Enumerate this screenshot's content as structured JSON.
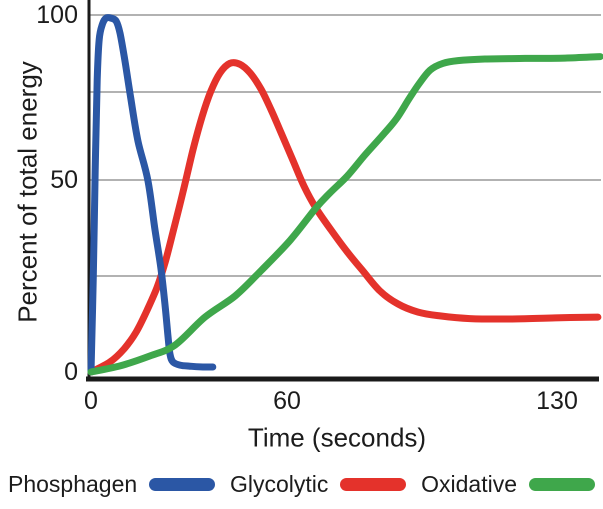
{
  "figure": {
    "background": "#ffffff",
    "text_color": "#1c1c1c",
    "axis_color": "#1a1a1a",
    "grid_color": "#b2b2b2"
  },
  "chart_data": {
    "type": "line",
    "title": "",
    "xlabel": "Time (seconds)",
    "ylabel": "Percent of total energy",
    "xlim": [
      0,
      141
    ],
    "ylim": [
      0,
      100
    ],
    "grid": true,
    "gridlines_at": [
      25,
      50,
      75,
      100
    ],
    "legend_position": "bottom",
    "x_ticks": [
      {
        "label": "0",
        "value": 0
      },
      {
        "label": "60",
        "value": 60
      },
      {
        "label": "130",
        "value": 130
      }
    ],
    "y_ticks": [
      {
        "label": "0",
        "value": 0
      },
      {
        "label": "50",
        "value": 50
      },
      {
        "label": "100",
        "value": 100
      }
    ],
    "series": [
      {
        "name": "Phosphagen",
        "color": "#2b57a5",
        "points": [
          [
            0,
            0
          ],
          [
            0.7,
            25
          ],
          [
            1.3,
            53
          ],
          [
            1.9,
            79
          ],
          [
            2.5,
            92
          ],
          [
            3.5,
            97
          ],
          [
            4.6,
            99
          ],
          [
            6.1,
            99
          ],
          [
            7.7,
            98
          ],
          [
            8.9,
            94
          ],
          [
            10.4,
            85
          ],
          [
            12.2,
            73
          ],
          [
            14.4,
            61
          ],
          [
            17.4,
            50
          ],
          [
            19.6,
            37
          ],
          [
            21.4,
            27
          ],
          [
            22.7,
            17
          ],
          [
            23.6,
            9
          ],
          [
            24.2,
            4.5
          ],
          [
            25.1,
            2.6
          ],
          [
            27.2,
            1.8
          ],
          [
            30.3,
            1.5
          ],
          [
            34.3,
            1.3
          ],
          [
            37.3,
            1.3
          ]
        ]
      },
      {
        "name": "Glycolytic",
        "color": "#e4322b",
        "points": [
          [
            0,
            0
          ],
          [
            5.8,
            2.6
          ],
          [
            10.1,
            6
          ],
          [
            13.8,
            10.4
          ],
          [
            17.1,
            16
          ],
          [
            20.2,
            22
          ],
          [
            22.7,
            28.6
          ],
          [
            25.4,
            37.5
          ],
          [
            28.2,
            47
          ],
          [
            31.2,
            58.5
          ],
          [
            34,
            68
          ],
          [
            36.7,
            75.3
          ],
          [
            39.5,
            81.2
          ],
          [
            42.5,
            84.3
          ],
          [
            45.6,
            84
          ],
          [
            48.7,
            81.2
          ],
          [
            52,
            76
          ],
          [
            55.1,
            70
          ],
          [
            58.2,
            63.4
          ],
          [
            61.6,
            55.4
          ],
          [
            64.4,
            48.4
          ],
          [
            67.5,
            42.7
          ],
          [
            71.4,
            37
          ],
          [
            75.6,
            31.3
          ],
          [
            79.7,
            26.3
          ],
          [
            84.1,
            21.1
          ],
          [
            88.8,
            17.7
          ],
          [
            94,
            15.6
          ],
          [
            99.7,
            14.6
          ],
          [
            107.4,
            13.9
          ],
          [
            117.8,
            13.8
          ],
          [
            129.5,
            14.1
          ],
          [
            140.6,
            14.3
          ]
        ]
      },
      {
        "name": "Oxidative",
        "color": "#3fa74b",
        "points": [
          [
            0,
            0
          ],
          [
            8.9,
            1.6
          ],
          [
            18.1,
            4.2
          ],
          [
            25.7,
            7
          ],
          [
            34.9,
            14.3
          ],
          [
            44.1,
            19.8
          ],
          [
            52.3,
            26.6
          ],
          [
            60.9,
            34.4
          ],
          [
            67.5,
            42.7
          ],
          [
            71.1,
            46.6
          ],
          [
            75.6,
            51.1
          ],
          [
            80.2,
            57.1
          ],
          [
            84.6,
            62.5
          ],
          [
            88.3,
            67.3
          ],
          [
            91.6,
            73
          ],
          [
            94.2,
            77.6
          ],
          [
            97.1,
            82.1
          ],
          [
            100.4,
            84.3
          ],
          [
            104.3,
            85.2
          ],
          [
            111.3,
            85.7
          ],
          [
            121.7,
            85.9
          ],
          [
            132.1,
            86
          ],
          [
            141.2,
            86.5
          ]
        ]
      }
    ]
  },
  "legend": {
    "items": [
      {
        "label": "Phosphagen",
        "color": "#2b57a5"
      },
      {
        "label": "Glycolytic",
        "color": "#e4322b"
      },
      {
        "label": "Oxidative",
        "color": "#3fa74b"
      }
    ]
  }
}
